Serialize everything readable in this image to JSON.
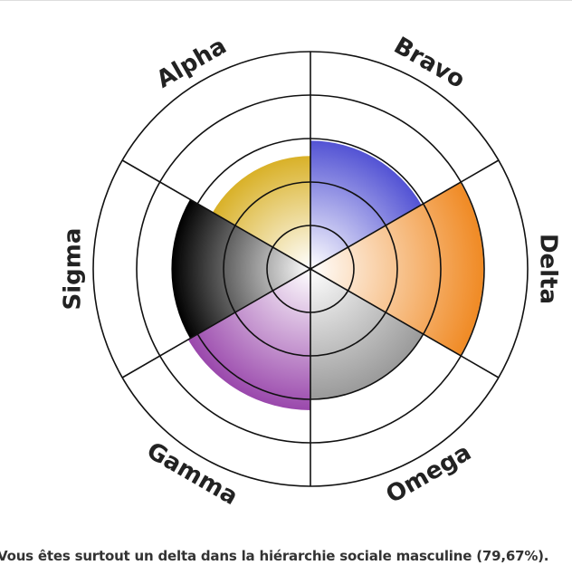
{
  "chart_data": {
    "type": "polar-area",
    "categories": [
      "Alpha",
      "Bravo",
      "Delta",
      "Omega",
      "Gamma",
      "Sigma"
    ],
    "values": [
      52,
      59,
      79.67,
      60,
      65,
      64
    ],
    "colors": [
      "#d9b128",
      "#5353d4",
      "#f08a24",
      "#9a9a9a",
      "#9a48ac",
      "#000000"
    ],
    "rlim": [
      0,
      100
    ],
    "rticks": [
      20,
      40,
      60,
      80,
      100
    ],
    "grid": true,
    "caption": "Vous êtes surtout un delta dans la hiérarchie sociale masculine (79,67%)."
  }
}
